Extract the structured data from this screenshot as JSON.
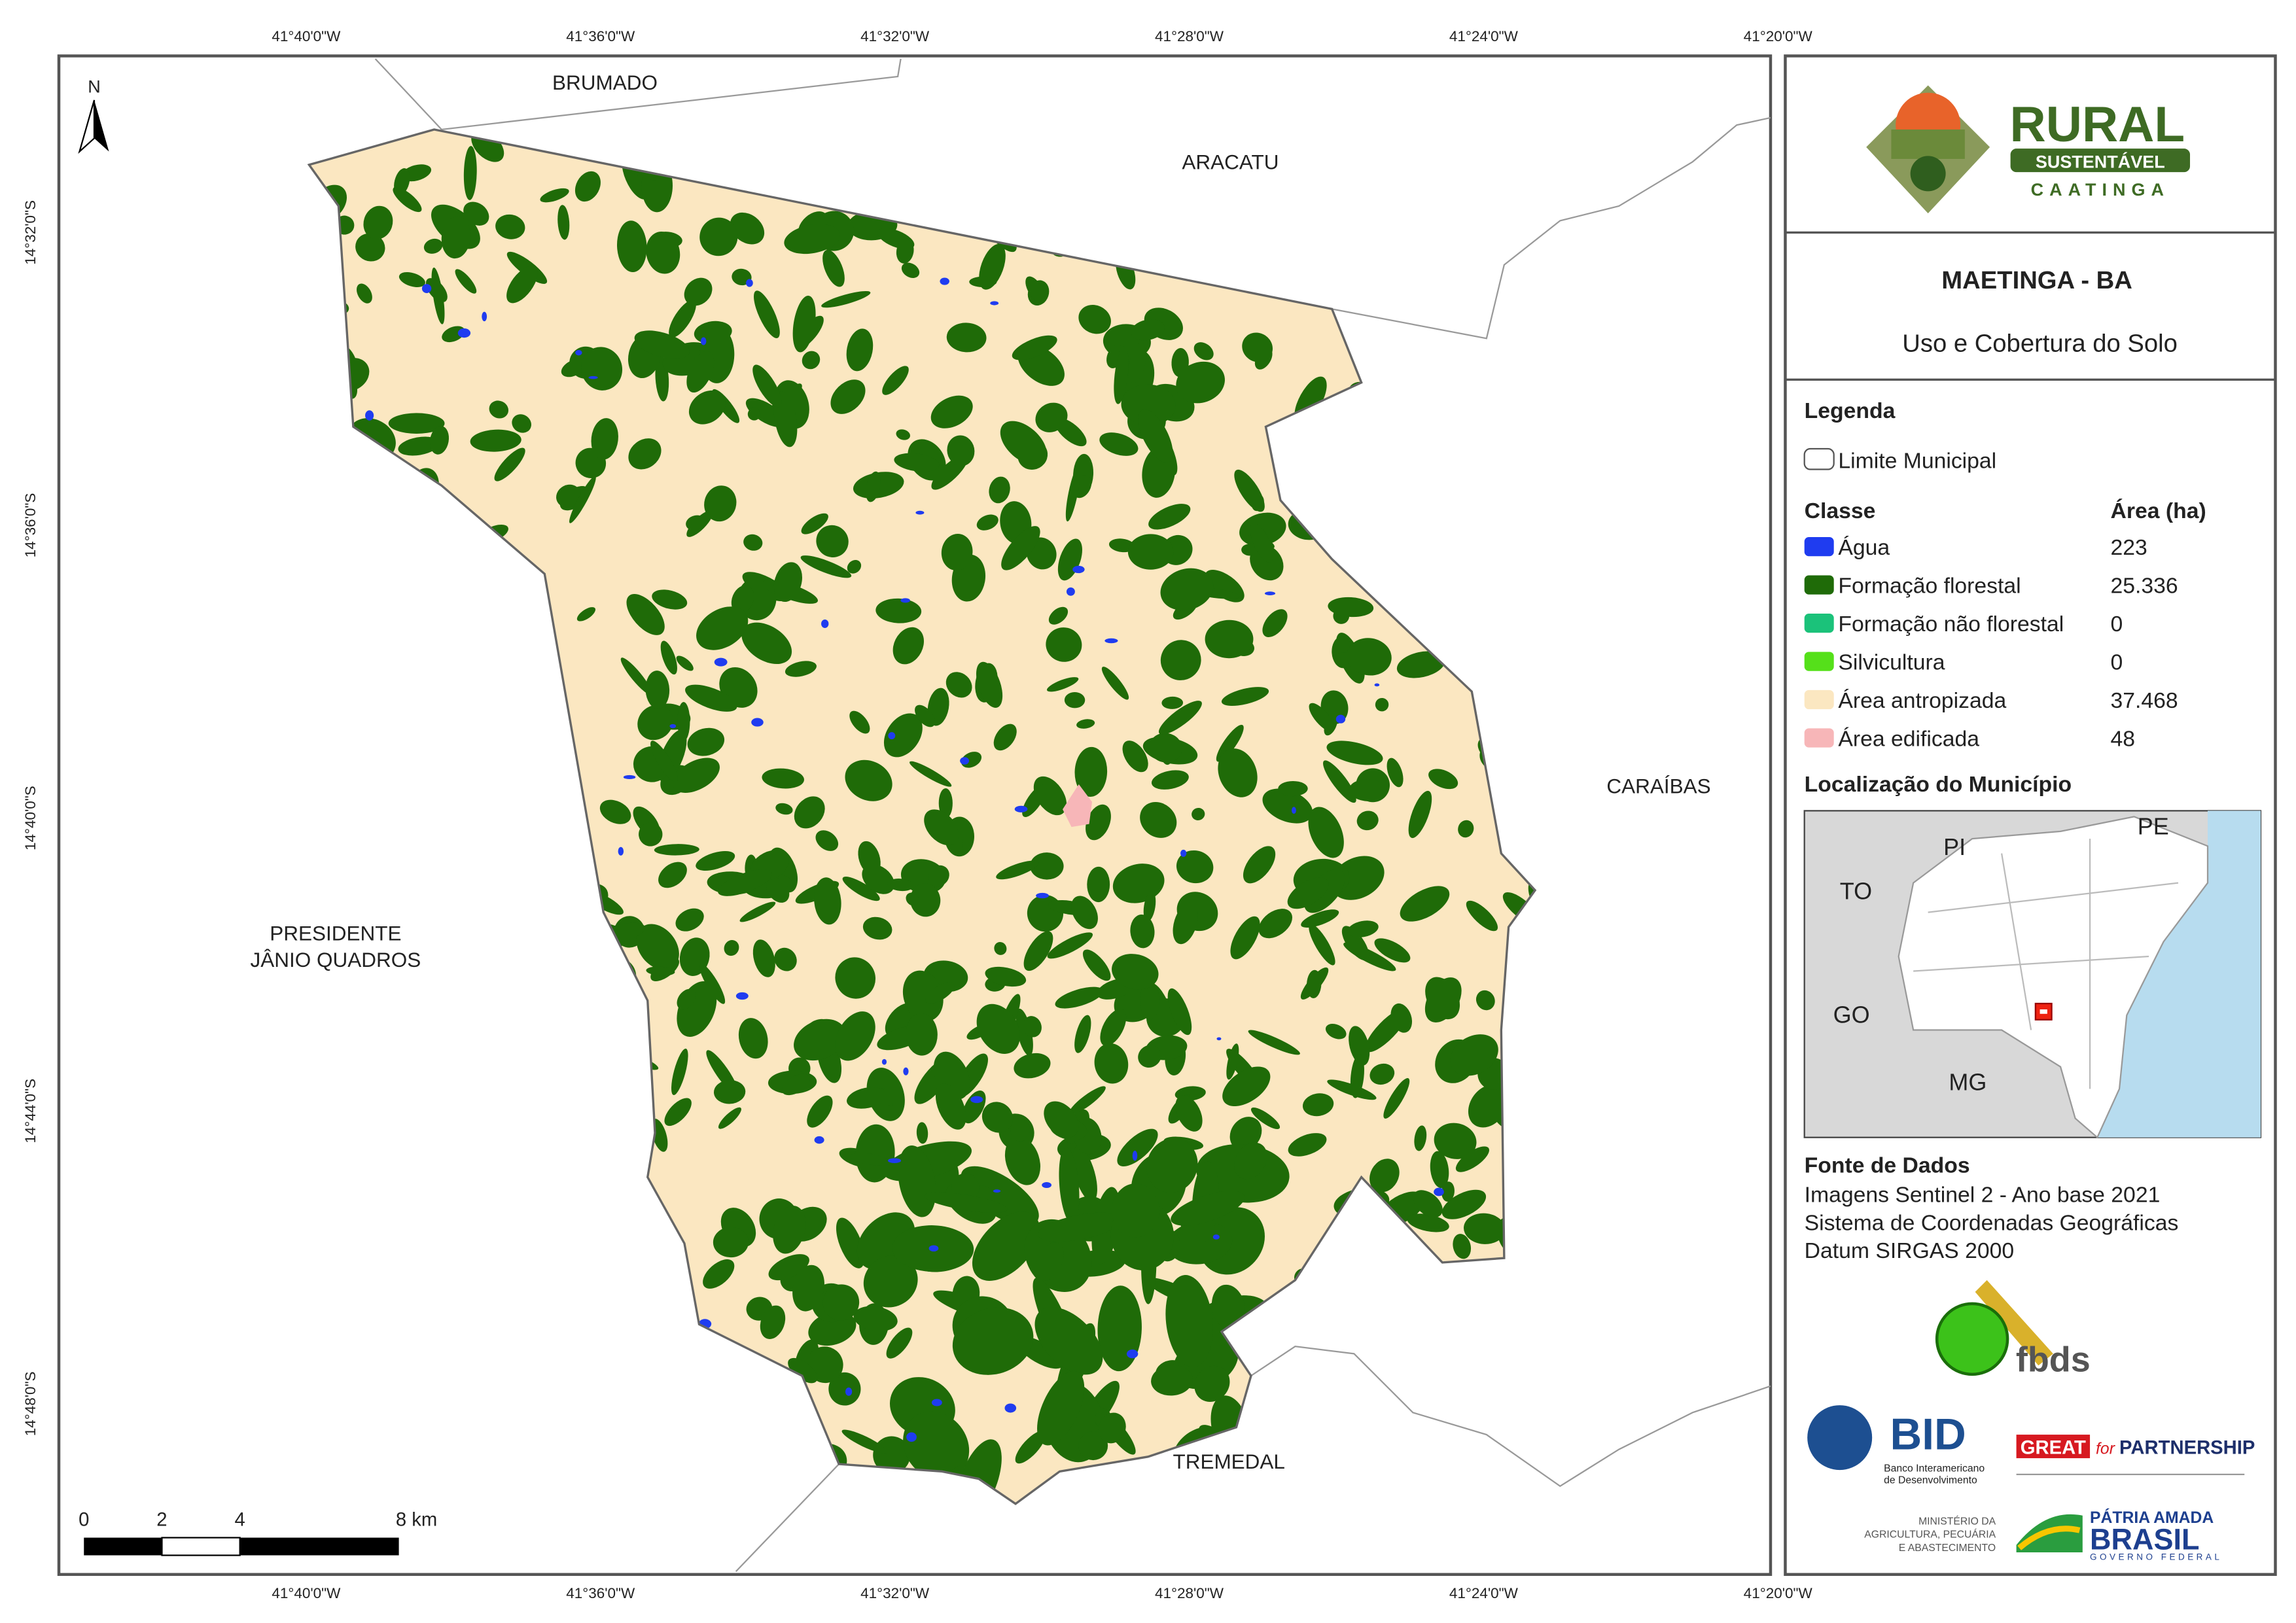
{
  "map": {
    "x_labels": [
      "41°40'0\"W",
      "41°36'0\"W",
      "41°32'0\"W",
      "41°28'0\"W",
      "41°24'0\"W",
      "41°20'0\"W"
    ],
    "y_labels": [
      "14°32'0\"S",
      "14°36'0\"S",
      "14°40'0\"S",
      "14°44'0\"S",
      "14°48'0\"S"
    ],
    "north": "N",
    "neighbors": {
      "brumado": "BRUMADO",
      "aracatu": "ARACATU",
      "caraibas": "CARAÍBAS",
      "presidente": [
        "PRESIDENTE",
        "JÂNIO QUADROS"
      ],
      "tremedal": "TREMEDAL"
    },
    "scale_bar": [
      "0",
      "2",
      "4",
      "8 km"
    ]
  },
  "panel": {
    "logo": {
      "title": "RURAL",
      "subtitle": "SUSTENTÁVEL",
      "tagline": "CAATINGA"
    },
    "title": "MAETINGA - BA",
    "subtitle": "Uso e Cobertura do Solo",
    "legend": {
      "heading": "Legenda",
      "boundary": "Limite Municipal",
      "class_header": "Classe",
      "area_header": "Área (ha)",
      "items": [
        {
          "label": "Água",
          "color": "#1f3cf0",
          "area": "223"
        },
        {
          "label": "Formação florestal",
          "color": "#1f6b08",
          "area": "25.336"
        },
        {
          "label": "Formação não florestal",
          "color": "#1bc27a",
          "area": "0"
        },
        {
          "label": "Silvicultura",
          "color": "#55e01a",
          "area": "0"
        },
        {
          "label": "Área antropizada",
          "color": "#fbe7c1",
          "area": "37.468"
        },
        {
          "label": "Área edificada",
          "color": "#f7b6b8",
          "area": "48"
        }
      ]
    },
    "location": {
      "heading": "Localização do Município",
      "states": {
        "pi": "PI",
        "pe": "PE",
        "to": "TO",
        "go": "GO",
        "mg": "MG"
      }
    },
    "sources": {
      "heading": "Fonte de Dados",
      "lines": [
        "Imagens Sentinel 2 - Ano base 2021",
        "Sistema de Coordenadas Geográficas",
        "Datum SIRGAS 2000"
      ]
    },
    "partners": {
      "fbds": "fbds",
      "bid": "BID",
      "bid_sub": [
        "Banco Interamericano",
        "de Desenvolvimento"
      ],
      "great": "GREAT",
      "for": "for",
      "partnership": "PARTNERSHIP",
      "ministry": [
        "MINISTÉRIO DA",
        "AGRICULTURA, PECUÁRIA",
        "E ABASTECIMENTO"
      ],
      "brasil": [
        "PÁTRIA AMADA",
        "BRASIL",
        "GOVERNO FEDERAL"
      ]
    }
  }
}
